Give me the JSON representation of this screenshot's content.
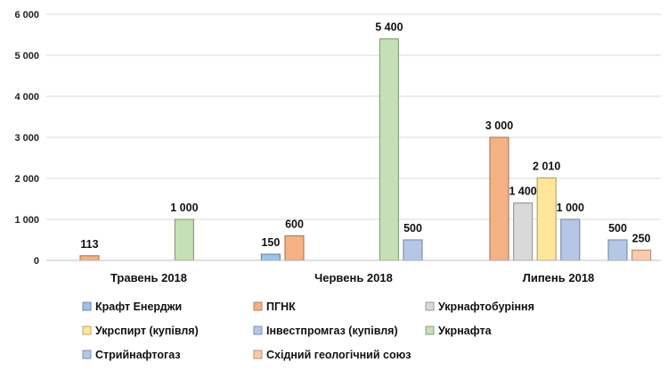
{
  "chart_data": {
    "type": "bar",
    "categories": [
      "Травень 2018",
      "Червень 2018",
      "Липень 2018"
    ],
    "ylim": [
      0,
      6000
    ],
    "yticks": [
      "0",
      "1 000",
      "2 000",
      "3 000",
      "4 000",
      "5 000",
      "6 000"
    ],
    "ytick_values": [
      0,
      1000,
      2000,
      3000,
      4000,
      5000,
      6000
    ],
    "grid": true,
    "legend_position": "bottom",
    "series": [
      {
        "name": "Крафт Енерджи",
        "color": "#9dc3e6",
        "values": [
          null,
          150,
          null
        ],
        "labels": [
          null,
          "150",
          null
        ]
      },
      {
        "name": "ПГНК",
        "color": "#f4b183",
        "values": [
          113,
          600,
          3000
        ],
        "labels": [
          "113",
          "600",
          "3 000"
        ]
      },
      {
        "name": "Укрнафтобуріння",
        "color": "#d9d9d9",
        "values": [
          null,
          null,
          1400
        ],
        "labels": [
          null,
          null,
          "1 400"
        ]
      },
      {
        "name": "Укрспирт (купівля)",
        "color": "#ffe699",
        "values": [
          null,
          null,
          2010
        ],
        "labels": [
          null,
          null,
          "2 010"
        ]
      },
      {
        "name": "Інвестпромгаз (купівля)",
        "color": "#b4c7e7",
        "values": [
          null,
          null,
          1000
        ],
        "labels": [
          null,
          null,
          "1 000"
        ]
      },
      {
        "name": "Укрнафта",
        "color": "#c5e0b4",
        "values": [
          1000,
          5400,
          null
        ],
        "labels": [
          "1 000",
          "5 400",
          null
        ]
      },
      {
        "name": "Стрийнафтогаз",
        "color": "#b4c7e7",
        "values": [
          null,
          500,
          500
        ],
        "labels": [
          null,
          "500",
          "500"
        ]
      },
      {
        "name": "Східний геологічний союз",
        "color": "#f8cbad",
        "values": [
          null,
          null,
          250
        ],
        "labels": [
          null,
          null,
          "250"
        ]
      }
    ]
  }
}
